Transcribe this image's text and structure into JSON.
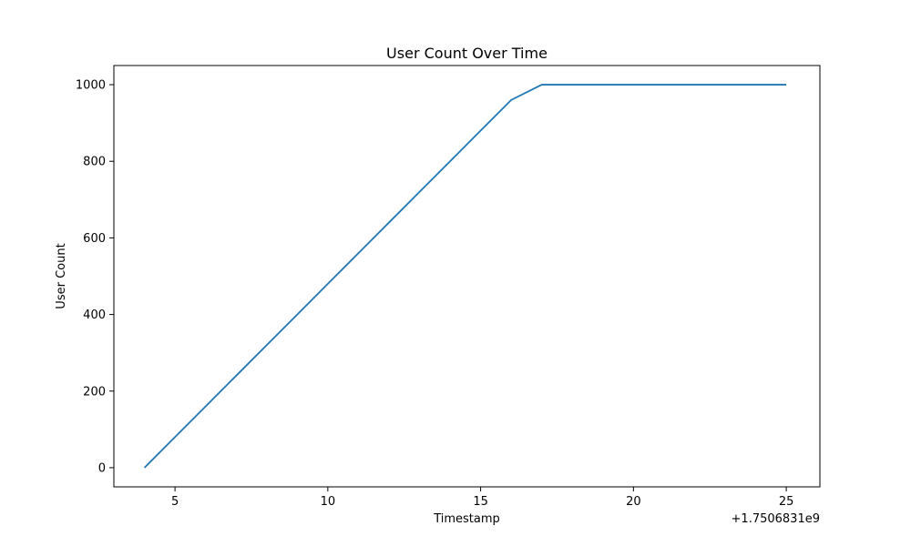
{
  "chart_data": {
    "type": "line",
    "title": "User Count Over Time",
    "xlabel": "Timestamp",
    "ylabel": "User Count",
    "x_offset_text": "+1.7506831e9",
    "xlim": [
      3,
      26.1
    ],
    "ylim": [
      -50,
      1050
    ],
    "xticks": [
      5,
      10,
      15,
      20,
      25
    ],
    "xtick_labels": [
      "5",
      "10",
      "15",
      "20",
      "25"
    ],
    "yticks": [
      0,
      200,
      400,
      600,
      800,
      1000
    ],
    "ytick_labels": [
      "0",
      "200",
      "400",
      "600",
      "800",
      "1000"
    ],
    "grid": false,
    "series": [
      {
        "color": "#1f77b4",
        "x": [
          4,
          5,
          6,
          7,
          8,
          9,
          10,
          11,
          12,
          13,
          14,
          15,
          16,
          17,
          18,
          19,
          20,
          21,
          22,
          23,
          24,
          25
        ],
        "y": [
          0,
          80,
          160,
          240,
          320,
          400,
          480,
          560,
          640,
          720,
          800,
          880,
          960,
          1000,
          1000,
          1000,
          1000,
          1000,
          1000,
          1000,
          1000,
          1000
        ]
      }
    ]
  }
}
